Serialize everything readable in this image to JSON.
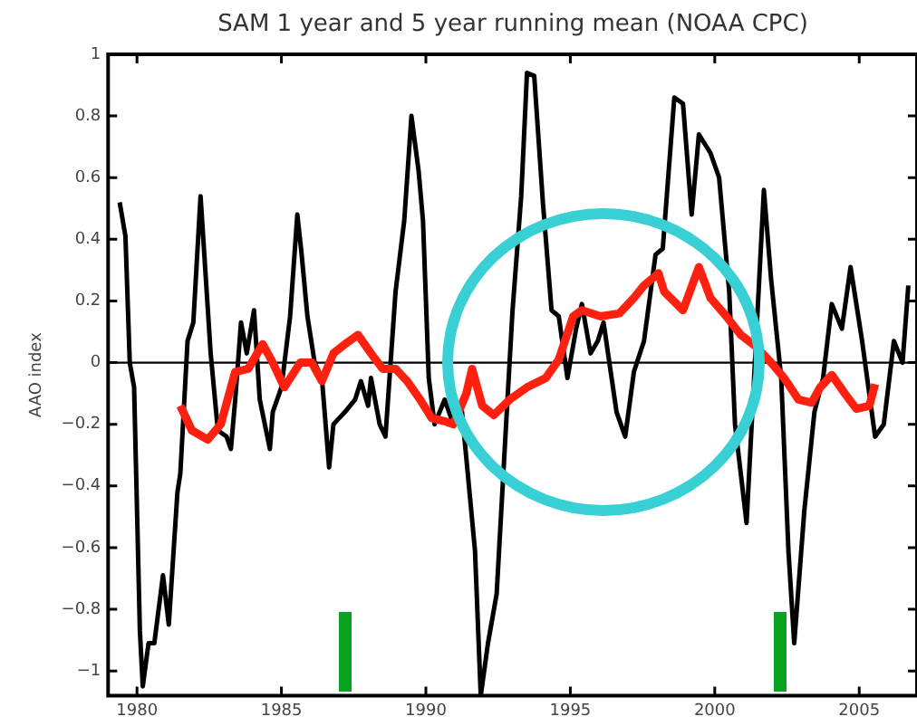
{
  "chart_data": {
    "type": "line",
    "title": "SAM 1 year and 5 year running mean (NOAA CPC)",
    "ylabel": "AAO index",
    "xlim": [
      1979,
      2007
    ],
    "ylim": [
      -1.08,
      1
    ],
    "xticks": [
      1980,
      1985,
      1990,
      1995,
      2000,
      2005
    ],
    "yticks": [
      {
        "value": -1,
        "label": "−1"
      },
      {
        "value": -0.8,
        "label": "−0.8"
      },
      {
        "value": -0.6,
        "label": "−0.6"
      },
      {
        "value": -0.4,
        "label": "−0.4"
      },
      {
        "value": -0.2,
        "label": "−0.2"
      },
      0,
      0.2,
      0.4,
      0.6,
      0.8,
      1
    ],
    "grid": false,
    "legend": false,
    "ref_lines": [
      {
        "axis": "y",
        "value": 0,
        "color": "#000000"
      }
    ],
    "series": [
      {
        "color": "#000000",
        "x": [
          1979.4,
          1979.6,
          1979.75,
          1979.9,
          1980.1,
          1980.2,
          1980.4,
          1980.6,
          1980.9,
          1981.1,
          1981.4,
          1981.5,
          1981.75,
          1981.95,
          1982.2,
          1982.55,
          1982.8,
          1983.1,
          1983.25,
          1983.4,
          1983.6,
          1983.8,
          1984.05,
          1984.25,
          1984.6,
          1984.7,
          1985,
          1985.3,
          1985.55,
          1985.7,
          1985.9,
          1986.15,
          1986.4,
          1986.65,
          1986.8,
          1987,
          1987.2,
          1987.55,
          1987.75,
          1988,
          1988.1,
          1988.4,
          1988.6,
          1988.95,
          1989.25,
          1989.5,
          1989.75,
          1989.9,
          1990.1,
          1990.3,
          1990.65,
          1990.95,
          1991.25,
          1991.7,
          1991.9,
          1992.15,
          1992.45,
          1992.8,
          1993,
          1993.3,
          1993.5,
          1993.75,
          1994.05,
          1994.35,
          1994.6,
          1994.9,
          1995.2,
          1995.4,
          1995.7,
          1995.95,
          1996.15,
          1996.6,
          1996.9,
          1997.2,
          1997.55,
          1997.95,
          1998.2,
          1998.6,
          1998.9,
          1999.2,
          1999.45,
          1999.85,
          2000.15,
          2000.5,
          2000.7,
          2001.1,
          2001.7,
          2001.95,
          2002.3,
          2002.55,
          2002.75,
          2003.1,
          2003.45,
          2003.75,
          2004.05,
          2004.4,
          2004.7,
          2005.1,
          2005.55,
          2005.85,
          2006.2,
          2006.5,
          2006.7
        ],
        "values": [
          0.52,
          0.41,
          0,
          -0.08,
          -0.87,
          -1.05,
          -0.91,
          -0.91,
          -0.69,
          -0.85,
          -0.42,
          -0.36,
          0.07,
          0.13,
          0.54,
          0.03,
          -0.22,
          -0.24,
          -0.28,
          -0.12,
          0.13,
          0.03,
          0.17,
          -0.12,
          -0.28,
          -0.16,
          -0.08,
          0.15,
          0.48,
          0.35,
          0.15,
          0,
          -0.05,
          -0.34,
          -0.2,
          -0.18,
          -0.16,
          -0.12,
          -0.06,
          -0.14,
          -0.05,
          -0.2,
          -0.24,
          0.23,
          0.46,
          0.8,
          0.62,
          0.46,
          -0.05,
          -0.2,
          -0.12,
          -0.2,
          -0.16,
          -0.61,
          -1.08,
          -0.91,
          -0.75,
          -0.16,
          0.17,
          0.54,
          0.94,
          0.93,
          0.52,
          0.17,
          0.15,
          -0.05,
          0.11,
          0.19,
          0.03,
          0.07,
          0.13,
          -0.16,
          -0.24,
          -0.03,
          0.07,
          0.35,
          0.37,
          0.86,
          0.84,
          0.48,
          0.74,
          0.68,
          0.6,
          0.23,
          -0.2,
          -0.52,
          0.56,
          0.27,
          -0.05,
          -0.61,
          -0.91,
          -0.48,
          -0.16,
          -0.05,
          0.19,
          0.11,
          0.31,
          0.07,
          -0.24,
          -0.2,
          0.07,
          0,
          0.25
        ]
      },
      {
        "color": "#ff2010",
        "x": [
          1981.5,
          1981.9,
          1982.45,
          1982.9,
          1983.4,
          1983.85,
          1984.35,
          1984.7,
          1985.1,
          1985.65,
          1986.05,
          1986.4,
          1986.8,
          1987.2,
          1987.65,
          1988.1,
          1988.5,
          1988.95,
          1989.35,
          1989.8,
          1990.2,
          1990.65,
          1990.95,
          1991.4,
          1991.6,
          1991.95,
          1992.35,
          1992.9,
          1993.5,
          1994.15,
          1994.6,
          1995.1,
          1995.4,
          1996.05,
          1996.7,
          1997.2,
          1997.55,
          1998.05,
          1998.25,
          1998.9,
          1999.45,
          1999.85,
          2000.4,
          2000.9,
          2001.45,
          2001.95,
          2002.4,
          2002.9,
          2003.35,
          2003.65,
          2004.05,
          2004.5,
          2004.9,
          2005.35,
          2005.55
        ],
        "values": [
          -0.14,
          -0.22,
          -0.25,
          -0.2,
          -0.03,
          -0.02,
          0.06,
          0,
          -0.08,
          0,
          0,
          -0.06,
          0.03,
          0.06,
          0.09,
          0.03,
          -0.02,
          -0.02,
          -0.06,
          -0.12,
          -0.18,
          -0.19,
          -0.2,
          -0.1,
          -0.02,
          -0.14,
          -0.17,
          -0.12,
          -0.08,
          -0.05,
          0.01,
          0.15,
          0.17,
          0.15,
          0.16,
          0.21,
          0.25,
          0.29,
          0.23,
          0.17,
          0.31,
          0.21,
          0.15,
          0.09,
          0.05,
          0,
          -0.05,
          -0.12,
          -0.13,
          -0.08,
          -0.04,
          -0.1,
          -0.15,
          -0.14,
          -0.07
        ]
      }
    ]
  }
}
